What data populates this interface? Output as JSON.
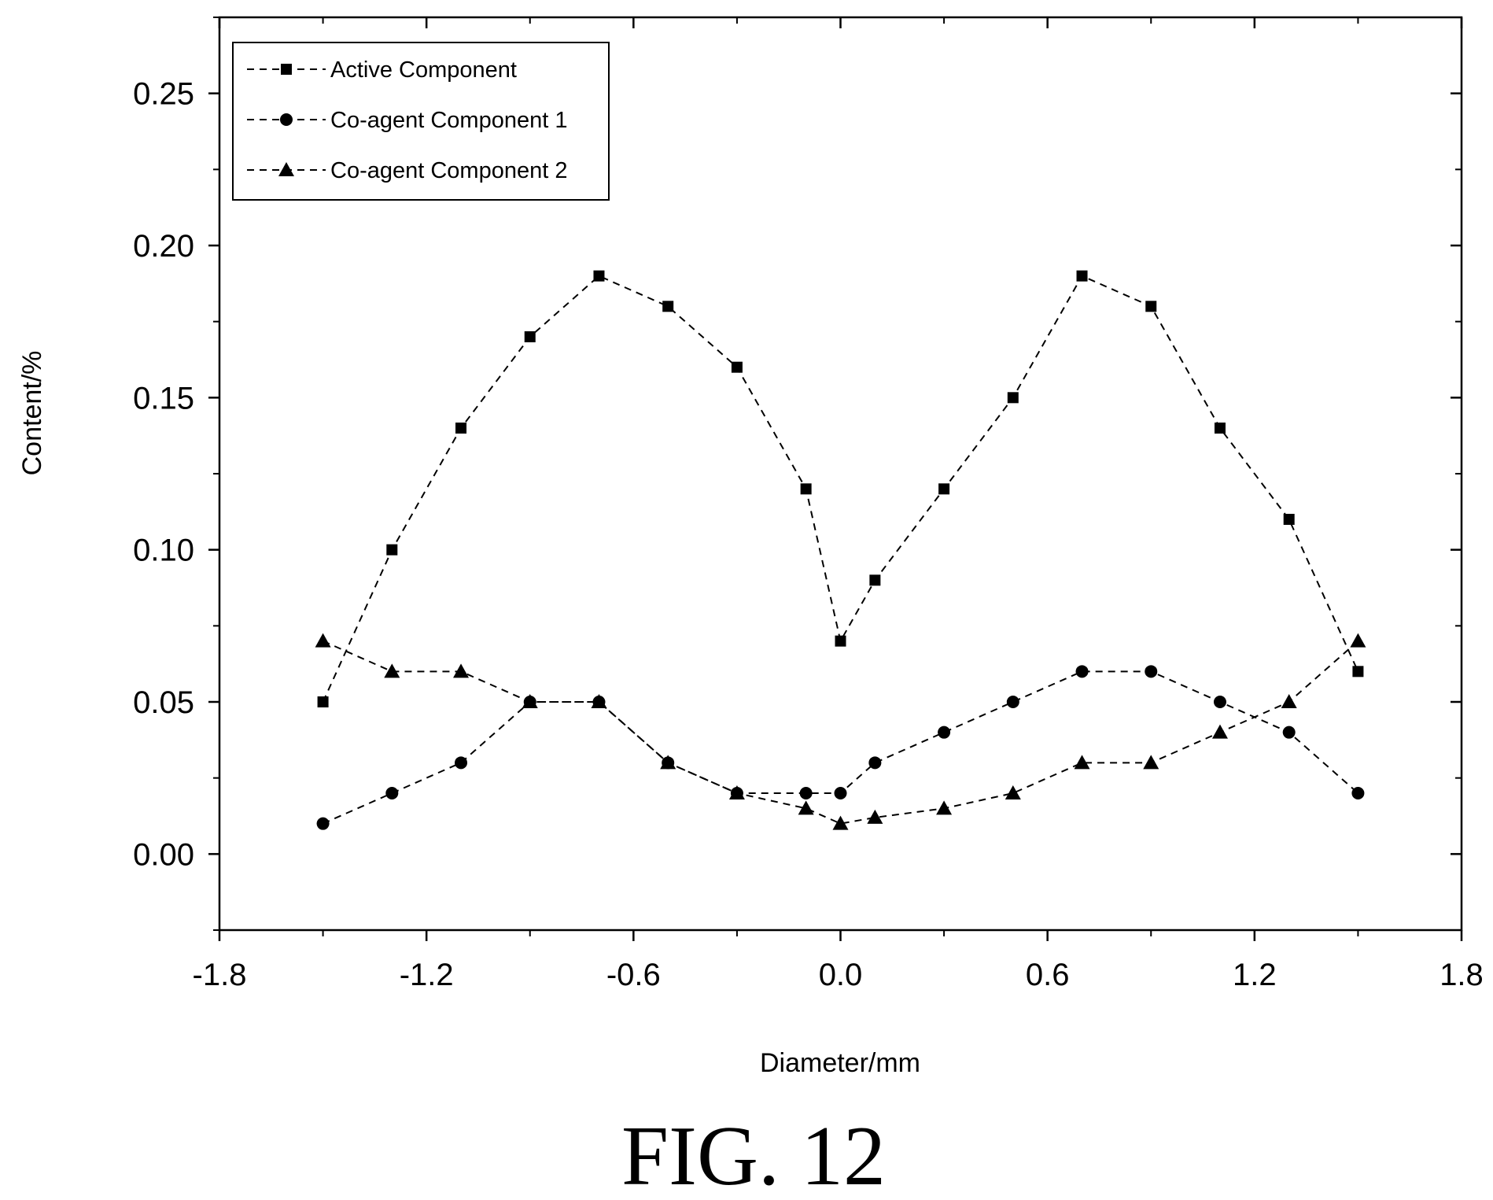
{
  "chart_data": {
    "type": "line",
    "title": "",
    "xlabel": "Diameter/mm",
    "ylabel": "Content/%",
    "xlim": [
      -1.8,
      1.8
    ],
    "ylim": [
      -0.025,
      0.275
    ],
    "xticks": [
      -1.8,
      -1.2,
      -0.6,
      0.0,
      0.6,
      1.2,
      1.8
    ],
    "xtick_labels": [
      "-1.8",
      "-1.2",
      "-0.6",
      "0.0",
      "0.6",
      "1.2",
      "1.8"
    ],
    "yticks": [
      0.0,
      0.05,
      0.1,
      0.15,
      0.2,
      0.25
    ],
    "ytick_labels": [
      "0.00",
      "0.05",
      "0.10",
      "0.15",
      "0.20",
      "0.25"
    ],
    "grid": false,
    "legend_position": "top-left",
    "line_style": "dashed",
    "x": [
      -1.5,
      -1.3,
      -1.1,
      -0.9,
      -0.7,
      -0.5,
      -0.3,
      -0.1,
      0.0,
      0.1,
      0.3,
      0.5,
      0.7,
      0.9,
      1.1,
      1.3,
      1.5
    ],
    "series": [
      {
        "name": "Active Component",
        "marker": "square",
        "values": [
          0.05,
          0.1,
          0.14,
          0.17,
          0.19,
          0.18,
          0.16,
          0.12,
          0.07,
          0.09,
          0.12,
          0.15,
          0.19,
          0.18,
          0.14,
          0.11,
          0.06
        ]
      },
      {
        "name": "Co-agent Component 1",
        "marker": "circle",
        "values": [
          0.01,
          0.02,
          0.03,
          0.05,
          0.05,
          0.03,
          0.02,
          0.02,
          0.02,
          0.03,
          0.04,
          0.05,
          0.06,
          0.06,
          0.05,
          0.04,
          0.02
        ]
      },
      {
        "name": "Co-agent Component 2",
        "marker": "triangle",
        "values": [
          0.07,
          0.06,
          0.06,
          0.05,
          0.05,
          0.03,
          0.02,
          0.015,
          0.01,
          0.012,
          0.015,
          0.02,
          0.03,
          0.03,
          0.04,
          0.05,
          0.07
        ]
      }
    ],
    "caption": "FIG. 12",
    "colors": {
      "ink": "#000000",
      "background": "#ffffff"
    }
  }
}
